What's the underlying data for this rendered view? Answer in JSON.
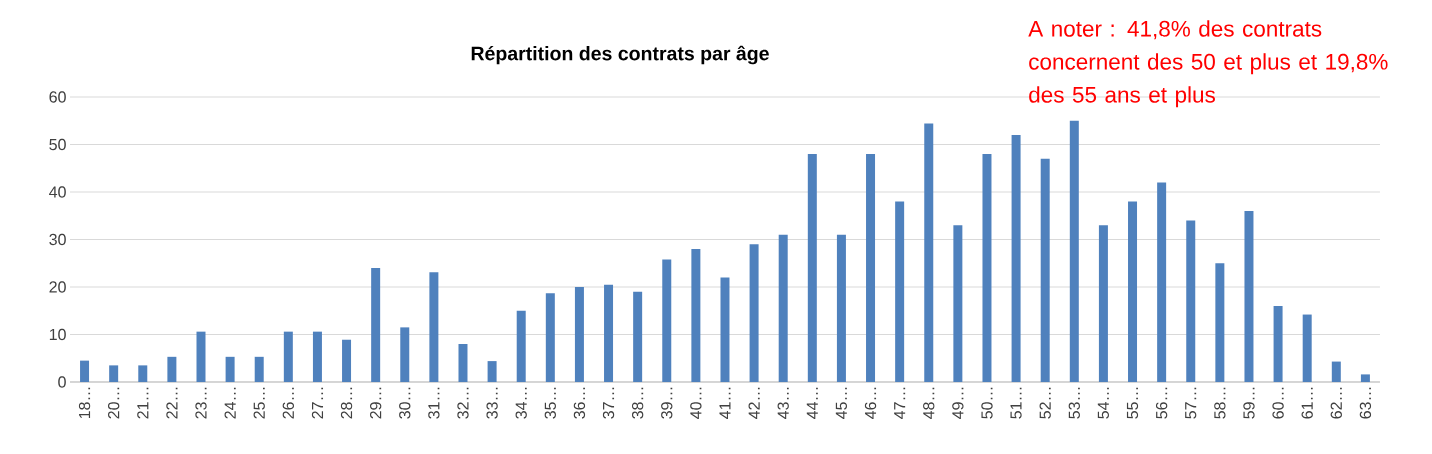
{
  "chart_data": {
    "type": "bar",
    "title": "Répartition des contrats par âge",
    "categories": [
      "18…",
      "20…",
      "21…",
      "22…",
      "23…",
      "24…",
      "25…",
      "26…",
      "27…",
      "28…",
      "29…",
      "30…",
      "31…",
      "32…",
      "33…",
      "34…",
      "35…",
      "36…",
      "37…",
      "38…",
      "39…",
      "40…",
      "41…",
      "42…",
      "43…",
      "44…",
      "45…",
      "46…",
      "47…",
      "48…",
      "49…",
      "50…",
      "51…",
      "52…",
      "53…",
      "54…",
      "55…",
      "56…",
      "57…",
      "58…",
      "59…",
      "60…",
      "61…",
      "62…",
      "63…"
    ],
    "values": [
      4.5,
      3.5,
      3.5,
      5.3,
      10.6,
      5.3,
      5.3,
      10.6,
      10.6,
      8.9,
      24,
      11.5,
      23.1,
      8,
      4.4,
      15,
      18.7,
      20,
      20.5,
      19,
      25.8,
      28,
      22,
      29,
      31,
      48,
      31,
      48,
      38,
      54.4,
      33,
      48,
      52,
      47,
      55,
      33,
      38,
      42,
      34,
      25,
      36,
      16,
      14.2,
      4.3,
      1.6
    ],
    "color": "#4f81bd",
    "ylim": [
      0,
      60
    ],
    "yticks": [
      0,
      10,
      20,
      30,
      40,
      50,
      60
    ],
    "grid": "y",
    "annotations": [
      "A noter : 41,8% des contrats concernent des 50 et plus et 19,8% des 55 ans et plus"
    ]
  }
}
